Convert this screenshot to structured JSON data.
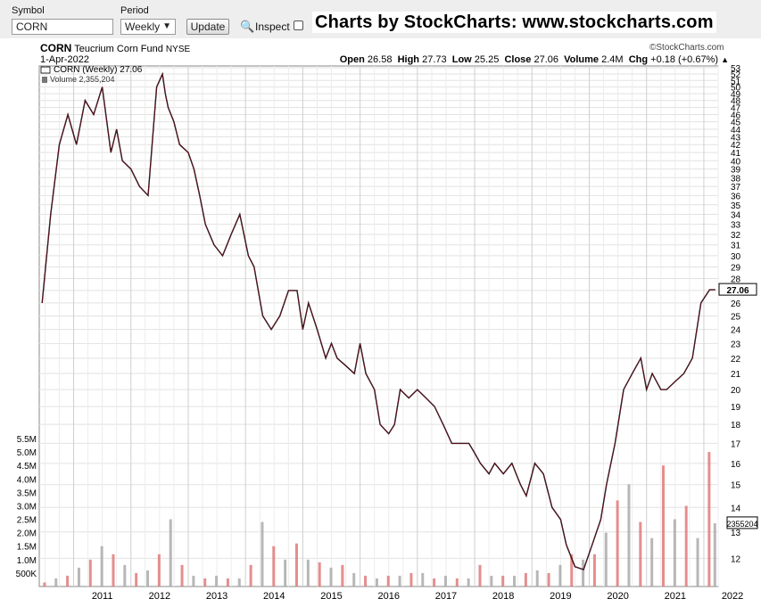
{
  "toolbar": {
    "symbol_label": "Symbol",
    "symbol_value": "CORN",
    "period_label": "Period",
    "period_value": "Weekly",
    "update_label": "Update",
    "inspect_label": "Inspect",
    "brand": "Charts by StockCharts:  www.stockcharts.com"
  },
  "header": {
    "ticker": "CORN",
    "name": "Teucrium Corn Fund",
    "exchange": "NYSE",
    "date": "1-Apr-2022",
    "watermark": "©StockCharts.com",
    "open_label": "Open",
    "open": "26.58",
    "high_label": "High",
    "high": "27.73",
    "low_label": "Low",
    "low": "25.25",
    "close_label": "Close",
    "close": "27.06",
    "volume_label": "Volume",
    "volume": "2.4M",
    "chg_label": "Chg",
    "chg": "+0.18 (+0.67%)"
  },
  "chart_data": {
    "type": "line",
    "title": "CORN (Weekly) 27.06",
    "volume_legend": "Volume 2,355,204",
    "x_ticks": [
      "2011",
      "2012",
      "2013",
      "2014",
      "2015",
      "2016",
      "2017",
      "2018",
      "2019",
      "2020",
      "2021",
      "2022"
    ],
    "price_scale": "log",
    "price_ylim": [
      11.2,
      53
    ],
    "price_ticks": [
      53,
      52,
      51,
      50,
      49,
      48,
      47,
      46,
      45,
      44,
      43,
      42,
      41,
      40,
      39,
      38,
      37,
      36,
      35,
      34,
      33,
      32,
      31,
      30,
      29,
      28,
      27,
      26,
      25,
      24,
      23,
      22,
      21,
      20,
      19,
      18,
      17,
      16,
      15,
      14,
      13,
      12
    ],
    "last_price_label": "27.06",
    "volume_ticks": [
      "5.5M",
      "5.0M",
      "4.5M",
      "4.0M",
      "3.5M",
      "3.0M",
      "2.5M",
      "2.0M",
      "1.5M",
      "1.0M",
      "500K"
    ],
    "volume_tick_values": [
      5.5,
      5.0,
      4.5,
      4.0,
      3.5,
      3.0,
      2.5,
      2.0,
      1.5,
      1.0,
      0.5
    ],
    "volume_ylim": [
      0,
      5.7
    ],
    "last_volume_label": "2355204",
    "series": [
      {
        "name": "CORN (Weekly)",
        "x": [
          2010.45,
          2010.6,
          2010.75,
          2010.9,
          2011.05,
          2011.2,
          2011.35,
          2011.5,
          2011.65,
          2011.75,
          2011.85,
          2012.0,
          2012.15,
          2012.3,
          2012.45,
          2012.55,
          2012.6,
          2012.65,
          2012.75,
          2012.85,
          2013.0,
          2013.1,
          2013.2,
          2013.3,
          2013.45,
          2013.6,
          2013.75,
          2013.9,
          2014.05,
          2014.15,
          2014.3,
          2014.45,
          2014.6,
          2014.75,
          2014.9,
          2015.0,
          2015.1,
          2015.25,
          2015.4,
          2015.5,
          2015.6,
          2015.75,
          2015.9,
          2016.0,
          2016.1,
          2016.25,
          2016.35,
          2016.5,
          2016.6,
          2016.7,
          2016.85,
          2017.0,
          2017.15,
          2017.3,
          2017.45,
          2017.6,
          2017.75,
          2017.9,
          2018.0,
          2018.1,
          2018.25,
          2018.35,
          2018.5,
          2018.65,
          2018.8,
          2018.9,
          2019.05,
          2019.2,
          2019.35,
          2019.5,
          2019.6,
          2019.75,
          2019.9,
          2020.05,
          2020.2,
          2020.3,
          2020.45,
          2020.6,
          2020.75,
          2020.9,
          2021.0,
          2021.1,
          2021.25,
          2021.35,
          2021.5,
          2021.65,
          2021.8,
          2021.95,
          2022.1,
          2022.2
        ],
        "values": [
          26,
          34,
          42,
          46,
          42,
          48,
          46,
          50,
          41,
          44,
          40,
          39,
          37,
          36,
          50,
          52,
          49,
          47,
          45,
          42,
          41,
          39,
          36,
          33,
          31,
          30,
          32,
          34,
          30,
          29,
          25,
          24,
          25,
          27,
          27,
          24,
          26,
          24,
          22,
          23,
          22,
          21.5,
          21,
          23,
          21,
          20,
          18,
          17.5,
          18,
          20,
          19.5,
          20,
          19.5,
          19,
          18,
          17,
          17,
          17,
          16.5,
          16,
          15.5,
          16,
          15.5,
          16,
          15,
          14.5,
          16,
          15.5,
          14,
          13.5,
          12.5,
          11.7,
          11.6,
          12.5,
          13.5,
          15,
          17,
          20,
          21,
          22,
          20,
          21,
          20,
          20,
          20.5,
          21,
          22,
          26,
          27.06,
          27.06
        ],
        "color": "#000000"
      }
    ],
    "volume_series": {
      "name": "Volume",
      "x": [
        2010.5,
        2010.7,
        2010.9,
        2011.1,
        2011.3,
        2011.5,
        2011.7,
        2011.9,
        2012.1,
        2012.3,
        2012.5,
        2012.7,
        2012.9,
        2013.1,
        2013.3,
        2013.5,
        2013.7,
        2013.9,
        2014.1,
        2014.3,
        2014.5,
        2014.7,
        2014.9,
        2015.1,
        2015.3,
        2015.5,
        2015.7,
        2015.9,
        2016.1,
        2016.3,
        2016.5,
        2016.7,
        2016.9,
        2017.1,
        2017.3,
        2017.5,
        2017.7,
        2017.9,
        2018.1,
        2018.3,
        2018.5,
        2018.7,
        2018.9,
        2019.1,
        2019.3,
        2019.5,
        2019.7,
        2019.9,
        2020.1,
        2020.3,
        2020.5,
        2020.7,
        2020.9,
        2021.1,
        2021.3,
        2021.5,
        2021.7,
        2021.9,
        2022.1,
        2022.2
      ],
      "values": [
        0.15,
        0.3,
        0.4,
        0.7,
        1.0,
        1.5,
        1.2,
        0.8,
        0.5,
        0.6,
        1.2,
        2.5,
        0.8,
        0.4,
        0.3,
        0.4,
        0.3,
        0.3,
        0.8,
        2.4,
        1.5,
        1.0,
        1.6,
        1.0,
        0.9,
        0.7,
        0.8,
        0.5,
        0.4,
        0.3,
        0.4,
        0.4,
        0.5,
        0.5,
        0.3,
        0.4,
        0.3,
        0.3,
        0.8,
        0.4,
        0.4,
        0.4,
        0.5,
        0.6,
        0.5,
        0.8,
        1.2,
        1.0,
        1.2,
        2.0,
        3.2,
        3.8,
        2.4,
        1.8,
        4.5,
        2.5,
        3.0,
        1.8,
        5.0,
        2.35
      ],
      "colors": [
        "#e07a7a",
        "#aaaaaa"
      ]
    }
  }
}
